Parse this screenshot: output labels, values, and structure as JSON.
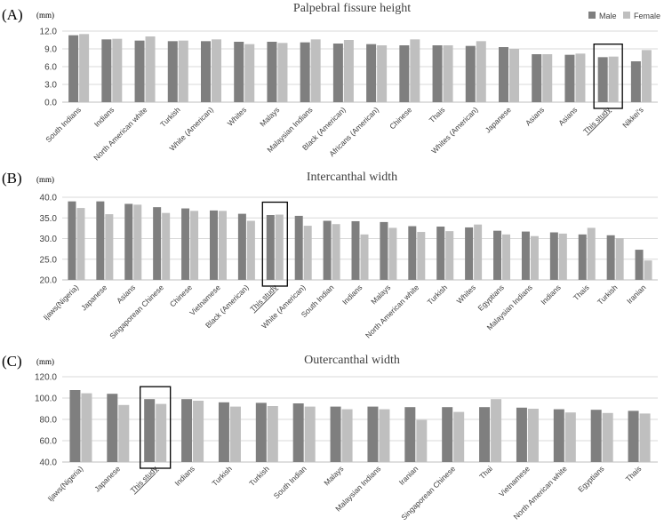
{
  "colors": {
    "male": "#7f7f7f",
    "female": "#bfbfbf",
    "grid": "#d9d9d9",
    "axis": "#bfbfbf",
    "text": "#404040",
    "highlight": "#000000"
  },
  "legend": {
    "male_label": "Male",
    "female_label": "Female"
  },
  "chart_data": [
    {
      "type": "bar",
      "panel_label": "(A)",
      "title": "Palpebral fissure height",
      "unit_label": "(mm)",
      "ylim": [
        0,
        12
      ],
      "yticks": [
        "0.0",
        "3.0",
        "6.0",
        "9.0",
        "12.0"
      ],
      "highlight": "This study",
      "categories": [
        "South Indians",
        "Indians",
        "North American white",
        "Turkish",
        "White (American)",
        "Whites",
        "Malays",
        "Malaysian Indians",
        "Black (American)",
        "Africans (American)",
        "Chinese",
        "Thais",
        "Whites (American)",
        "Japanese",
        "Asians",
        "Asians",
        "This study",
        "Nikkei's"
      ],
      "series": [
        {
          "name": "Male",
          "values": [
            11.3,
            10.6,
            10.4,
            10.3,
            10.3,
            10.2,
            10.2,
            10.1,
            9.9,
            9.8,
            9.6,
            9.6,
            9.5,
            9.3,
            8.1,
            8.0,
            7.6,
            6.9
          ]
        },
        {
          "name": "Female",
          "values": [
            11.5,
            10.7,
            11.1,
            10.4,
            10.6,
            9.8,
            10.0,
            10.6,
            10.5,
            9.6,
            10.6,
            9.6,
            10.3,
            9.0,
            8.1,
            8.2,
            7.7,
            8.8
          ]
        }
      ]
    },
    {
      "type": "bar",
      "panel_label": "(B)",
      "title": "Intercanthal width",
      "unit_label": "(mm)",
      "ylim": [
        20,
        40
      ],
      "yticks": [
        "20.0",
        "25.0",
        "30.0",
        "35.0",
        "40.0"
      ],
      "highlight": "This study",
      "categories": [
        "Ijaws(Nigeria)",
        "Japanese",
        "Asians",
        "Singaporean Chinese",
        "Chinese",
        "Vietnamese",
        "Black (American)",
        "This study",
        "White (American)",
        "South Indian",
        "Indians",
        "Malays",
        "North American white",
        "Turkish",
        "Whites",
        "Egyptians",
        "Malaysian Indians",
        "Indians",
        "Thais",
        "Turkish",
        "Iranian"
      ],
      "series": [
        {
          "name": "Male",
          "values": [
            39.0,
            39.0,
            38.4,
            37.6,
            37.3,
            36.8,
            36.0,
            35.7,
            35.5,
            34.3,
            34.2,
            34.0,
            33.0,
            32.9,
            32.7,
            31.9,
            31.7,
            31.5,
            31.0,
            30.8,
            27.3
          ]
        },
        {
          "name": "Female",
          "values": [
            37.4,
            35.9,
            38.2,
            36.2,
            36.7,
            36.7,
            34.3,
            35.8,
            33.1,
            33.5,
            31.0,
            32.6,
            31.6,
            31.8,
            33.4,
            31.0,
            30.6,
            31.2,
            32.6,
            30.1,
            24.7
          ]
        }
      ]
    },
    {
      "type": "bar",
      "panel_label": "(C)",
      "title": "Outercanthal width",
      "unit_label": "(mm)",
      "ylim": [
        40,
        120
      ],
      "yticks": [
        "40.0",
        "60.0",
        "80.0",
        "100.0",
        "120.0"
      ],
      "highlight": "This study",
      "categories": [
        "Ijaws(Nigeria)",
        "Japanese",
        "This study",
        "Indians",
        "Turkish",
        "Turkish",
        "South Indian",
        "Malays",
        "Malaysian Indians",
        "Iranian",
        "Singaporean Chinese",
        "Thai",
        "Vietnamese",
        "North American white",
        "Egyptians",
        "Thais"
      ],
      "series": [
        {
          "name": "Male",
          "values": [
            107.5,
            104.0,
            99.0,
            99.0,
            96.0,
            95.5,
            95.0,
            92.0,
            92.0,
            91.5,
            91.5,
            91.5,
            91.0,
            89.5,
            89.0,
            88.0
          ]
        },
        {
          "name": "Female",
          "values": [
            104.5,
            93.5,
            94.5,
            97.5,
            92.0,
            92.5,
            92.0,
            89.5,
            89.5,
            79.5,
            87.0,
            99.0,
            90.0,
            86.5,
            86.0,
            85.5
          ]
        }
      ]
    }
  ]
}
